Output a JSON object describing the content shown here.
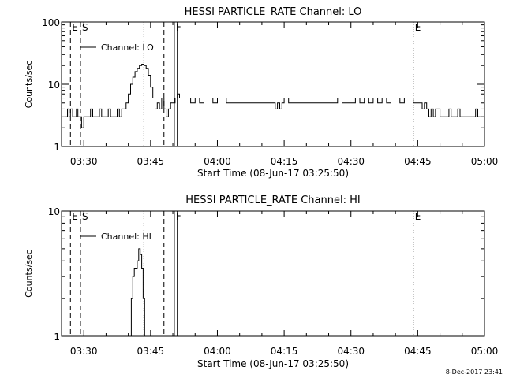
{
  "chart_data": [
    {
      "type": "line",
      "title": "HESSI PARTICLE_RATE Channel: LO",
      "xlabel": "Start Time (08-Jun-17 03:25:50)",
      "ylabel": "Counts/sec",
      "y_scale": "log",
      "ylim": [
        1,
        100
      ],
      "xlim_minutes_after_0325": [
        0,
        95
      ],
      "x_ticks": [
        "03:30",
        "03:45",
        "04:00",
        "04:15",
        "04:30",
        "04:45",
        "05:00"
      ],
      "y_ticks": [
        "1",
        "10",
        "100"
      ],
      "legend": {
        "placement": "top-left",
        "entries": [
          "Channel: LO"
        ]
      },
      "markers": [
        {
          "label": "E",
          "style": "dashed",
          "x": "03:27:00"
        },
        {
          "label": "S",
          "style": "dashed",
          "x": "03:29:15"
        },
        {
          "label": "",
          "style": "dotted",
          "x": "03:43:30"
        },
        {
          "label": "",
          "style": "dashed",
          "x": "03:48:00"
        },
        {
          "label": "F",
          "style": "solid",
          "x": "03:50:20"
        },
        {
          "label": "",
          "style": "solid",
          "x": "03:51:00"
        },
        {
          "label": "E",
          "style": "dotted",
          "x": "04:44:00"
        },
        {
          "label": "",
          "style": "dotted",
          "x": "05:00:00"
        }
      ],
      "series": [
        {
          "name": "Channel: LO",
          "points": [
            [
              "03:25:50",
              3
            ],
            [
              "03:26:20",
              4
            ],
            [
              "03:26:40",
              3
            ],
            [
              "03:27:00",
              4
            ],
            [
              "03:27:30",
              3
            ],
            [
              "03:28:00",
              3
            ],
            [
              "03:28:20",
              4
            ],
            [
              "03:28:40",
              3
            ],
            [
              "03:29:00",
              3
            ],
            [
              "03:29:30",
              2
            ],
            [
              "03:30:00",
              3
            ],
            [
              "03:31:00",
              3
            ],
            [
              "03:31:30",
              4
            ],
            [
              "03:32:00",
              3
            ],
            [
              "03:33:00",
              3
            ],
            [
              "03:33:30",
              4
            ],
            [
              "03:34:00",
              3
            ],
            [
              "03:35:00",
              3
            ],
            [
              "03:35:30",
              4
            ],
            [
              "03:36:00",
              3
            ],
            [
              "03:37:00",
              3
            ],
            [
              "03:37:30",
              4
            ],
            [
              "03:38:00",
              3
            ],
            [
              "03:38:30",
              4
            ],
            [
              "03:39:00",
              4
            ],
            [
              "03:39:30",
              5
            ],
            [
              "03:40:00",
              7
            ],
            [
              "03:40:30",
              10
            ],
            [
              "03:41:00",
              13
            ],
            [
              "03:41:30",
              16
            ],
            [
              "03:42:00",
              18
            ],
            [
              "03:42:30",
              20
            ],
            [
              "03:43:00",
              21
            ],
            [
              "03:43:30",
              20
            ],
            [
              "03:44:00",
              18
            ],
            [
              "03:44:30",
              14
            ],
            [
              "03:45:00",
              9
            ],
            [
              "03:45:30",
              6
            ],
            [
              "03:46:00",
              4
            ],
            [
              "03:46:30",
              5
            ],
            [
              "03:47:00",
              4
            ],
            [
              "03:47:30",
              6
            ],
            [
              "03:48:00",
              4
            ],
            [
              "03:48:30",
              3
            ],
            [
              "03:49:00",
              4
            ],
            [
              "03:49:30",
              5
            ],
            [
              "03:50:00",
              5
            ],
            [
              "03:50:30",
              6
            ],
            [
              "03:51:00",
              7
            ],
            [
              "03:51:30",
              6
            ],
            [
              "03:52:00",
              6
            ],
            [
              "03:53:00",
              6
            ],
            [
              "03:54:00",
              5
            ],
            [
              "03:55:00",
              6
            ],
            [
              "03:56:00",
              5
            ],
            [
              "03:57:00",
              6
            ],
            [
              "03:58:00",
              6
            ],
            [
              "03:59:00",
              5
            ],
            [
              "04:00:00",
              6
            ],
            [
              "04:01:00",
              6
            ],
            [
              "04:02:00",
              5
            ],
            [
              "04:03:00",
              5
            ],
            [
              "04:04:00",
              5
            ],
            [
              "04:05:00",
              5
            ],
            [
              "04:06:00",
              5
            ],
            [
              "04:07:00",
              5
            ],
            [
              "04:08:00",
              5
            ],
            [
              "04:09:00",
              5
            ],
            [
              "04:10:00",
              5
            ],
            [
              "04:11:00",
              5
            ],
            [
              "04:12:00",
              5
            ],
            [
              "04:13:00",
              4
            ],
            [
              "04:13:30",
              5
            ],
            [
              "04:14:00",
              4
            ],
            [
              "04:14:30",
              5
            ],
            [
              "04:15:00",
              6
            ],
            [
              "04:16:00",
              5
            ],
            [
              "04:17:00",
              5
            ],
            [
              "04:18:00",
              5
            ],
            [
              "04:19:00",
              5
            ],
            [
              "04:20:00",
              5
            ],
            [
              "04:21:00",
              5
            ],
            [
              "04:22:00",
              5
            ],
            [
              "04:23:00",
              5
            ],
            [
              "04:24:00",
              5
            ],
            [
              "04:25:00",
              5
            ],
            [
              "04:26:00",
              5
            ],
            [
              "04:27:00",
              6
            ],
            [
              "04:28:00",
              5
            ],
            [
              "04:29:00",
              5
            ],
            [
              "04:30:00",
              5
            ],
            [
              "04:31:00",
              6
            ],
            [
              "04:32:00",
              5
            ],
            [
              "04:33:00",
              6
            ],
            [
              "04:34:00",
              5
            ],
            [
              "04:35:00",
              6
            ],
            [
              "04:36:00",
              5
            ],
            [
              "04:37:00",
              6
            ],
            [
              "04:38:00",
              5
            ],
            [
              "04:39:00",
              6
            ],
            [
              "04:40:00",
              6
            ],
            [
              "04:41:00",
              5
            ],
            [
              "04:42:00",
              6
            ],
            [
              "04:43:00",
              6
            ],
            [
              "04:44:00",
              5
            ],
            [
              "04:45:00",
              5
            ],
            [
              "04:46:00",
              4
            ],
            [
              "04:46:30",
              5
            ],
            [
              "04:47:00",
              4
            ],
            [
              "04:47:30",
              3
            ],
            [
              "04:48:00",
              4
            ],
            [
              "04:48:30",
              3
            ],
            [
              "04:49:00",
              4
            ],
            [
              "04:50:00",
              3
            ],
            [
              "04:51:00",
              3
            ],
            [
              "04:52:00",
              4
            ],
            [
              "04:52:30",
              3
            ],
            [
              "04:53:00",
              3
            ],
            [
              "04:54:00",
              4
            ],
            [
              "04:54:30",
              3
            ],
            [
              "04:55:00",
              3
            ],
            [
              "04:56:00",
              3
            ],
            [
              "04:57:00",
              3
            ],
            [
              "04:58:00",
              4
            ],
            [
              "04:58:30",
              3
            ],
            [
              "04:59:00",
              3
            ],
            [
              "04:59:30",
              3
            ],
            [
              "05:00:00",
              2
            ]
          ]
        }
      ]
    },
    {
      "type": "line",
      "title": "HESSI PARTICLE_RATE Channel: HI",
      "xlabel": "Start Time (08-Jun-17 03:25:50)",
      "ylabel": "Counts/sec",
      "y_scale": "log",
      "ylim": [
        1,
        10
      ],
      "xlim_minutes_after_0325": [
        0,
        95
      ],
      "x_ticks": [
        "03:30",
        "03:45",
        "04:00",
        "04:15",
        "04:30",
        "04:45",
        "05:00"
      ],
      "y_ticks": [
        "1",
        "10"
      ],
      "legend": {
        "placement": "top-left",
        "entries": [
          "Channel: HI"
        ]
      },
      "markers": [
        {
          "label": "E",
          "style": "dashed",
          "x": "03:27:00"
        },
        {
          "label": "S",
          "style": "dashed",
          "x": "03:29:15"
        },
        {
          "label": "",
          "style": "dotted",
          "x": "03:43:30"
        },
        {
          "label": "",
          "style": "dashed",
          "x": "03:48:00"
        },
        {
          "label": "F",
          "style": "solid",
          "x": "03:50:20"
        },
        {
          "label": "",
          "style": "solid",
          "x": "03:51:00"
        },
        {
          "label": "E",
          "style": "dotted",
          "x": "04:44:00"
        },
        {
          "label": "",
          "style": "dotted",
          "x": "05:00:00"
        }
      ],
      "series": [
        {
          "name": "Channel: HI",
          "points": [
            [
              "03:40:20",
              0.9
            ],
            [
              "03:40:40",
              2
            ],
            [
              "03:41:00",
              3
            ],
            [
              "03:41:20",
              3.5
            ],
            [
              "03:41:40",
              3.5
            ],
            [
              "03:42:00",
              4
            ],
            [
              "03:42:20",
              5
            ],
            [
              "03:42:40",
              4.5
            ],
            [
              "03:43:00",
              3.5
            ],
            [
              "03:43:20",
              2
            ],
            [
              "03:43:40",
              0.9
            ]
          ]
        }
      ]
    }
  ],
  "footer": {
    "timestamp": "8-Dec-2017 23:41"
  }
}
